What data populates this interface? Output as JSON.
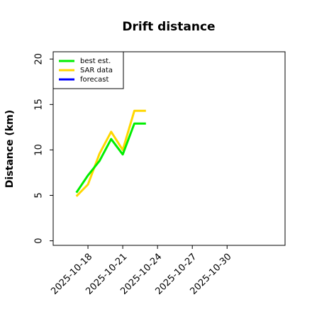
{
  "chart_data": {
    "type": "line",
    "title": "Drift distance",
    "y_label": "Distance (km)",
    "x": [
      "2025-10-17",
      "2025-10-18",
      "2025-10-19",
      "2025-10-20",
      "2025-10-21",
      "2025-10-22",
      "2025-10-23"
    ],
    "series": [
      {
        "name": "best est.",
        "color": "#00ee00",
        "values": [
          5.3,
          7.2,
          8.8,
          11.2,
          9.5,
          12.9,
          12.9
        ]
      },
      {
        "name": "SAR data",
        "color": "#ffd700",
        "values": [
          4.9,
          6.2,
          9.6,
          12.0,
          10.0,
          14.3,
          14.3
        ]
      },
      {
        "name": "forecast",
        "color": "#0000ff",
        "values": [
          null,
          null,
          null,
          null,
          null,
          null,
          null
        ]
      }
    ],
    "xlim": [
      "2025-10-15",
      "2025-11-04"
    ],
    "xticks": [
      "2025-10-18",
      "2025-10-21",
      "2025-10-24",
      "2025-10-27",
      "2025-10-30"
    ],
    "ylim": [
      -0.5,
      20.8
    ],
    "yticks": [
      0,
      5,
      10,
      15,
      20
    ],
    "legend": "upper left"
  }
}
